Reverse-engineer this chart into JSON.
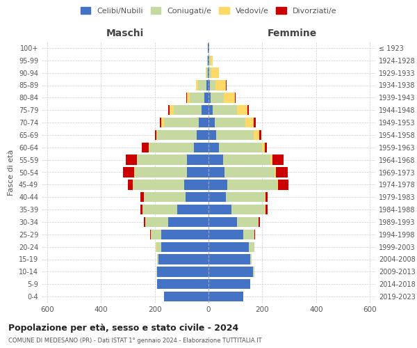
{
  "age_groups": [
    "0-4",
    "5-9",
    "10-14",
    "15-19",
    "20-24",
    "25-29",
    "30-34",
    "35-39",
    "40-44",
    "45-49",
    "50-54",
    "55-59",
    "60-64",
    "65-69",
    "70-74",
    "75-79",
    "80-84",
    "85-89",
    "90-94",
    "95-99",
    "100+"
  ],
  "birth_years": [
    "2019-2023",
    "2014-2018",
    "2009-2013",
    "2004-2008",
    "1999-2003",
    "1994-1998",
    "1989-1993",
    "1984-1988",
    "1979-1983",
    "1974-1978",
    "1969-1973",
    "1964-1968",
    "1959-1963",
    "1954-1958",
    "1949-1953",
    "1944-1948",
    "1939-1943",
    "1934-1938",
    "1929-1933",
    "1924-1928",
    "≤ 1923"
  ],
  "maschi": {
    "celibi": [
      165,
      190,
      190,
      185,
      175,
      175,
      150,
      115,
      85,
      90,
      80,
      80,
      55,
      45,
      35,
      25,
      15,
      8,
      3,
      2,
      2
    ],
    "coniugati": [
      0,
      0,
      5,
      5,
      20,
      40,
      85,
      130,
      155,
      190,
      195,
      185,
      165,
      145,
      130,
      105,
      55,
      30,
      5,
      2,
      0
    ],
    "vedovi": [
      0,
      0,
      0,
      0,
      2,
      0,
      1,
      1,
      1,
      2,
      2,
      2,
      3,
      5,
      10,
      15,
      10,
      8,
      3,
      1,
      0
    ],
    "divorziati": [
      0,
      0,
      0,
      0,
      0,
      3,
      5,
      8,
      12,
      18,
      40,
      40,
      25,
      5,
      5,
      5,
      2,
      0,
      0,
      0,
      0
    ]
  },
  "femmine": {
    "nubili": [
      130,
      155,
      165,
      155,
      150,
      130,
      105,
      85,
      65,
      70,
      60,
      55,
      38,
      28,
      22,
      15,
      8,
      5,
      2,
      2,
      2
    ],
    "coniugate": [
      0,
      0,
      5,
      5,
      20,
      40,
      80,
      125,
      145,
      185,
      185,
      175,
      160,
      140,
      115,
      90,
      50,
      20,
      8,
      5,
      0
    ],
    "vedove": [
      0,
      0,
      0,
      0,
      0,
      0,
      1,
      2,
      2,
      3,
      5,
      8,
      12,
      20,
      30,
      40,
      40,
      40,
      28,
      8,
      0
    ],
    "divorziate": [
      0,
      0,
      0,
      0,
      0,
      2,
      5,
      8,
      8,
      40,
      45,
      40,
      8,
      8,
      8,
      5,
      3,
      2,
      1,
      0,
      0
    ]
  },
  "colors": {
    "celibi": "#4472c4",
    "coniugati": "#c5d9a0",
    "vedovi": "#ffd966",
    "divorziati": "#cc0000"
  },
  "xlim": 620,
  "title": "Popolazione per età, sesso e stato civile - 2024",
  "subtitle": "COMUNE DI MEDESANO (PR) - Dati ISTAT 1° gennaio 2024 - Elaborazione TUTTITALIA.IT",
  "ylabel_left": "Fasce di età",
  "xlabel_left": "Maschi",
  "xlabel_right": "Femmine",
  "legend_labels": [
    "Celibi/Nubili",
    "Coniugati/e",
    "Vedovi/e",
    "Divorziati/e"
  ],
  "background_color": "#ffffff",
  "grid_color": "#cccccc"
}
